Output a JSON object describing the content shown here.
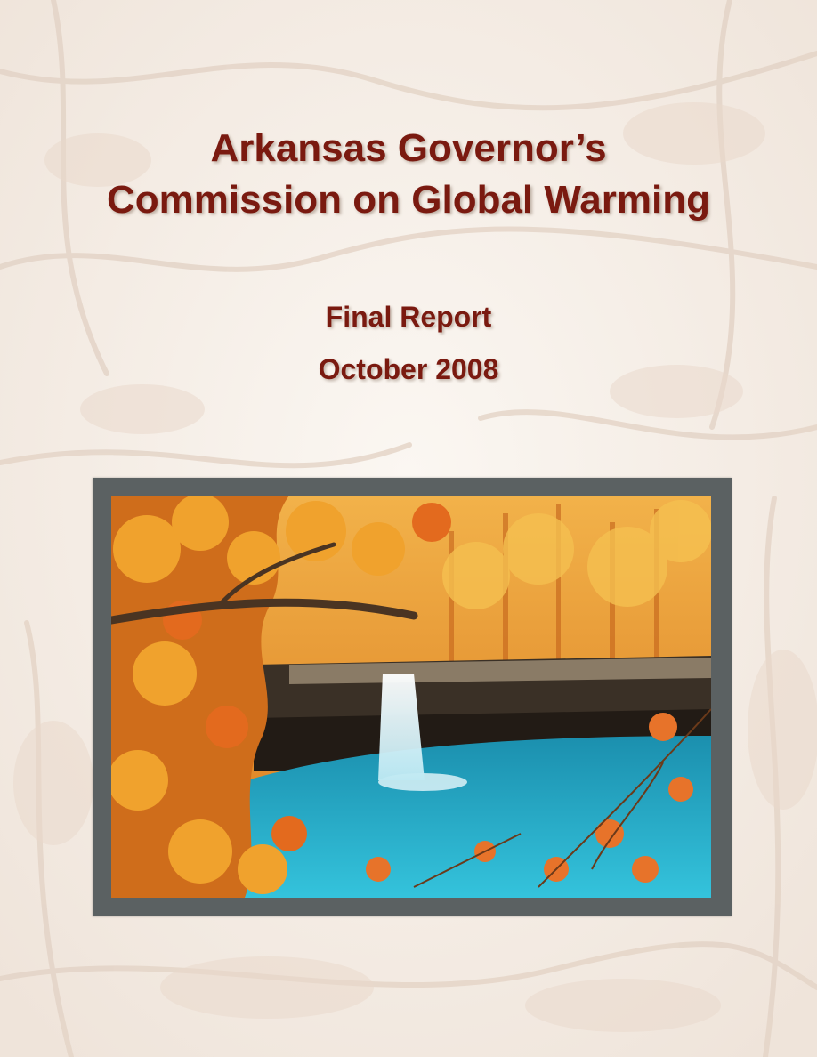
{
  "cover": {
    "title_line1": "Arkansas Governor’s",
    "title_line2": "Commission on Global Warming",
    "subtitle": "Final Report",
    "date": "October 2008"
  },
  "colors": {
    "title_text": "#7a1a10",
    "background": "#f6efe8",
    "frame": "#5b6162",
    "water": "#22a9c4",
    "foliage": "#e68a25"
  },
  "image": {
    "subject": "autumn-waterfall-photo"
  }
}
